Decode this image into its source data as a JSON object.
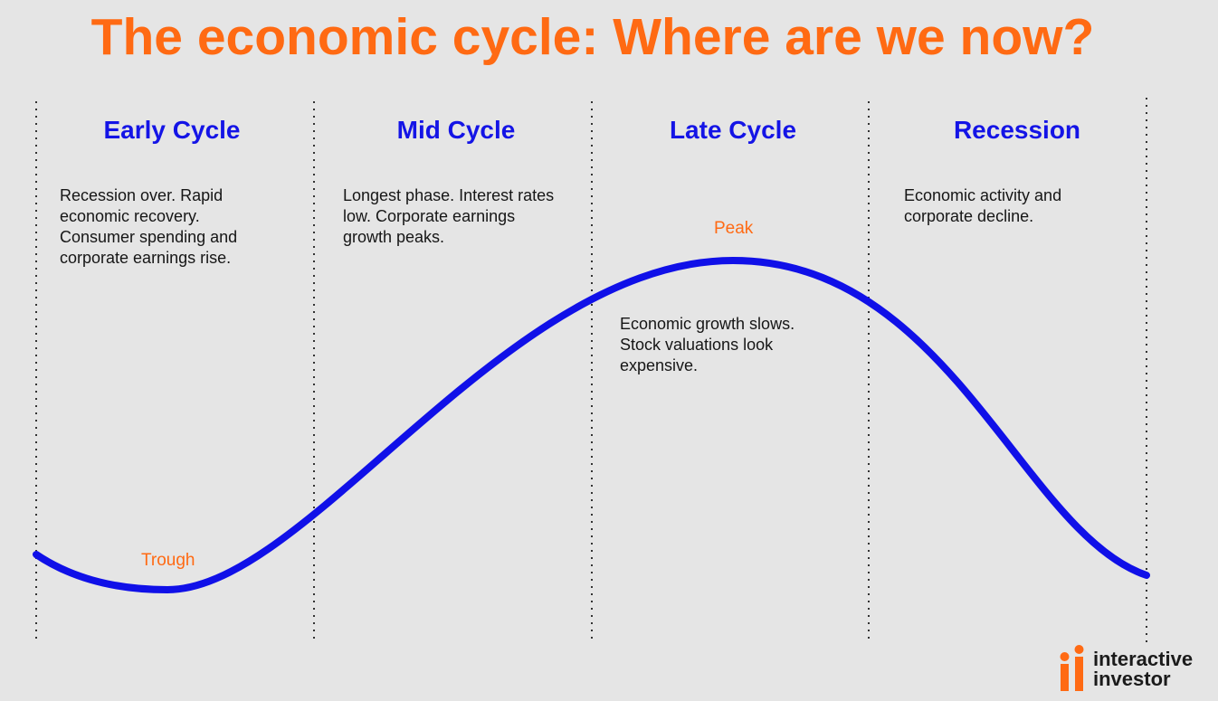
{
  "title": "The economic cycle: Where are we now?",
  "phases": [
    {
      "name": "Early Cycle",
      "description": "Recession over. Rapid\neconomic recovery.\nConsumer spending and\ncorporate earnings rise."
    },
    {
      "name": "Mid Cycle",
      "description": "Longest phase. Interest rates\nlow. Corporate earnings\ngrowth peaks."
    },
    {
      "name": "Late Cycle",
      "description": "Economic growth slows.\nStock valuations look\nexpensive."
    },
    {
      "name": "Recession",
      "description": "Economic activity and\ncorporate decline."
    }
  ],
  "labels": {
    "trough": "Trough",
    "peak": "Peak"
  },
  "logo": {
    "text": "interactive\ninvestor"
  },
  "colors": {
    "title": "#ff6a13",
    "curve": "#1010e8",
    "phase_title": "#1414e6",
    "background": "#e5e5e5"
  }
}
